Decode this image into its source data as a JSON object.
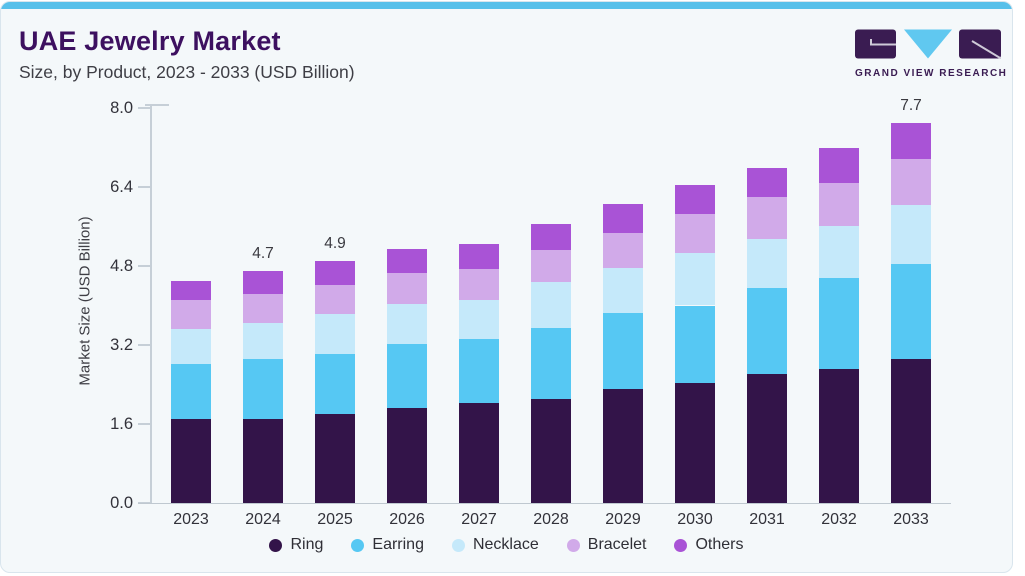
{
  "page": {
    "title": "UAE Jewelry Market",
    "subtitle": "Size, by Product, 2023 - 2033 (USD Billion)",
    "accent_color": "#57c0ea",
    "title_color": "#3d1060",
    "background_color": "#f4f8fa"
  },
  "logo": {
    "text": "GRAND VIEW RESEARCH",
    "purple": "#3a1c52",
    "blue": "#60c8f0",
    "line_color": "#cfcad8"
  },
  "chart_data": {
    "type": "bar",
    "stacked": true,
    "title": "UAE Jewelry Market",
    "subtitle": "Size, by Product, 2023 - 2033 (USD Billion)",
    "xlabel": "",
    "ylabel": "Market Size (USD Billion)",
    "ylim": [
      0,
      8.0
    ],
    "yticks": [
      0,
      1.6,
      3.2,
      4.8,
      6.4,
      8.0
    ],
    "grid": false,
    "legend_position": "bottom",
    "categories": [
      "2023",
      "2024",
      "2025",
      "2026",
      "2027",
      "2028",
      "2029",
      "2030",
      "2031",
      "2032",
      "2033"
    ],
    "series": [
      {
        "name": "Ring",
        "color": "#331449",
        "values": [
          1.7,
          1.7,
          1.81,
          1.93,
          2.03,
          2.11,
          2.31,
          2.43,
          2.62,
          2.72,
          2.92
        ]
      },
      {
        "name": "Earring",
        "color": "#56c8f3",
        "values": [
          1.12,
          1.22,
          1.21,
          1.29,
          1.29,
          1.43,
          1.53,
          1.57,
          1.73,
          1.83,
          1.93
        ]
      },
      {
        "name": "Necklace",
        "color": "#c5e9fa",
        "values": [
          0.7,
          0.72,
          0.8,
          0.82,
          0.8,
          0.93,
          0.91,
          1.07,
          0.99,
          1.07,
          1.19
        ]
      },
      {
        "name": "Bracelet",
        "color": "#d1aae9",
        "values": [
          0.6,
          0.6,
          0.6,
          0.62,
          0.62,
          0.66,
          0.72,
          0.78,
          0.85,
          0.87,
          0.93
        ]
      },
      {
        "name": "Others",
        "color": "#a953d6",
        "values": [
          0.38,
          0.46,
          0.48,
          0.48,
          0.51,
          0.52,
          0.58,
          0.6,
          0.6,
          0.7,
          0.73
        ]
      }
    ],
    "totals": [
      4.5,
      4.7,
      4.9,
      5.14,
      5.25,
      5.65,
      6.05,
      6.45,
      6.79,
      7.19,
      7.7
    ],
    "bar_labels": [
      "",
      "4.7",
      "4.9",
      "",
      "",
      "",
      "",
      "",
      "",
      "",
      "7.7"
    ]
  }
}
